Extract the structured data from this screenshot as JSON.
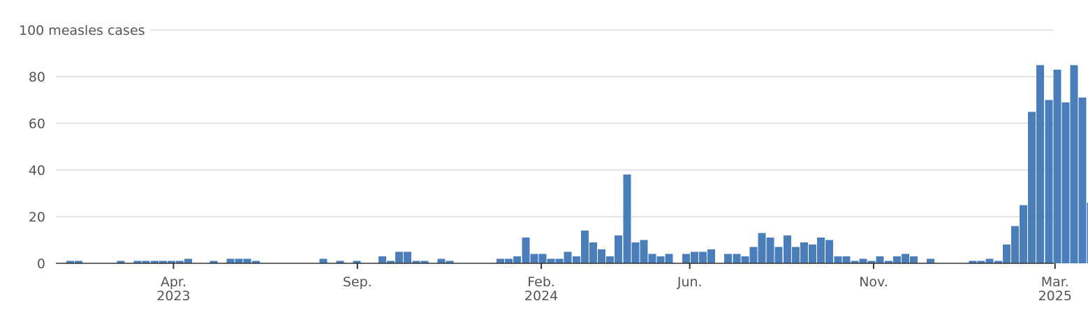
{
  "chart_data": {
    "type": "bar",
    "title": "",
    "ylabel": "measles cases",
    "xlabel": "",
    "ylim": [
      0,
      100
    ],
    "yticks": [
      0,
      20,
      40,
      60,
      80,
      100
    ],
    "ytick_labels": [
      "0",
      "20",
      "40",
      "60",
      "80",
      "100 measles cases"
    ],
    "grid": true,
    "bar_color": "#4a7ebb",
    "x_start_week": "2023-01-01",
    "x_unit": "week",
    "x_ticks": [
      {
        "label": "Apr.",
        "year": "2023",
        "week": 12.7
      },
      {
        "label": "Sep.",
        "year": "",
        "week": 34.5
      },
      {
        "label": "Feb.",
        "year": "2024",
        "week": 56.3
      },
      {
        "label": "Jun.",
        "year": "",
        "week": 73.9
      },
      {
        "label": "Nov.",
        "year": "",
        "week": 95.7
      },
      {
        "label": "Mar.",
        "year": "2025",
        "week": 117.2
      }
    ],
    "series": [
      {
        "values": [
          1,
          1,
          0,
          0,
          0,
          0,
          1,
          0,
          1,
          1,
          1,
          1,
          1,
          1,
          2,
          0,
          0,
          1,
          0,
          2,
          2,
          2,
          1,
          0,
          0,
          0,
          0,
          0,
          0,
          0,
          2,
          0,
          1,
          0,
          1,
          0,
          0,
          3,
          1,
          5,
          5,
          1,
          1,
          0,
          2,
          1,
          0,
          0,
          0,
          0,
          0,
          2,
          2,
          3,
          11,
          4,
          4,
          2,
          2,
          5,
          3,
          14,
          9,
          6,
          3,
          12,
          38,
          9,
          10,
          4,
          3,
          4,
          0,
          4,
          5,
          5,
          6,
          0,
          4,
          4,
          3,
          7,
          13,
          11,
          7,
          12,
          7,
          9,
          8,
          11,
          10,
          3,
          3,
          1,
          2,
          1,
          3,
          1,
          3,
          4,
          3,
          0,
          2,
          0,
          0,
          0,
          0,
          1,
          1,
          2,
          1,
          8,
          16,
          25,
          65,
          85,
          70,
          83,
          69,
          85,
          71,
          26
        ]
      }
    ]
  }
}
